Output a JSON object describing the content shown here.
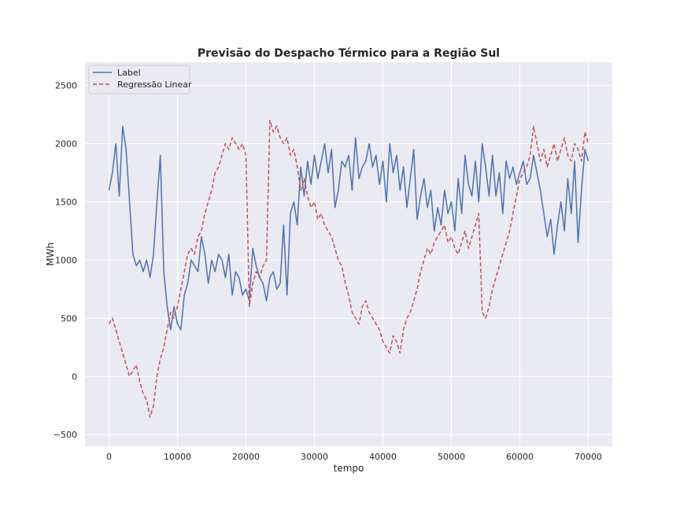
{
  "chart_data": {
    "type": "line",
    "title": "Previsão do Despacho Térmico para a Região Sul",
    "xlabel": "tempo",
    "ylabel": "MWh",
    "xlim": [
      -3500,
      73500
    ],
    "ylim": [
      -600,
      2700
    ],
    "xticks": [
      0,
      10000,
      20000,
      30000,
      40000,
      50000,
      60000,
      70000
    ],
    "xtick_labels": [
      "0",
      "10000",
      "20000",
      "30000",
      "40000",
      "50000",
      "60000",
      "70000"
    ],
    "yticks": [
      -500,
      0,
      500,
      1000,
      1500,
      2000,
      2500
    ],
    "ytick_labels": [
      "−500",
      "0",
      "500",
      "1000",
      "1500",
      "2000",
      "2500"
    ],
    "grid": true,
    "legend_position": "top-left",
    "series": [
      {
        "name": "Label",
        "color": "#4c72b0",
        "style": "solid",
        "x": [
          0,
          500,
          1000,
          1500,
          2000,
          2500,
          3000,
          3500,
          4000,
          4500,
          5000,
          5500,
          6000,
          6500,
          7000,
          7500,
          8000,
          8500,
          9000,
          9500,
          10000,
          10500,
          11000,
          11500,
          12000,
          12500,
          13000,
          13500,
          14000,
          14500,
          15000,
          15500,
          16000,
          16500,
          17000,
          17500,
          18000,
          18500,
          19000,
          19500,
          20000,
          20500,
          21000,
          21500,
          22000,
          22500,
          23000,
          23500,
          24000,
          24500,
          25000,
          25500,
          26000,
          26500,
          27000,
          27500,
          28000,
          28500,
          29000,
          29500,
          30000,
          30500,
          31000,
          31500,
          32000,
          32500,
          33000,
          33500,
          34000,
          34500,
          35000,
          35500,
          36000,
          36500,
          37000,
          37500,
          38000,
          38500,
          39000,
          39500,
          40000,
          40500,
          41000,
          41500,
          42000,
          42500,
          43000,
          43500,
          44000,
          44500,
          45000,
          45500,
          46000,
          46500,
          47000,
          47500,
          48000,
          48500,
          49000,
          49500,
          50000,
          50500,
          51000,
          51500,
          52000,
          52500,
          53000,
          53500,
          54000,
          54500,
          55000,
          55500,
          56000,
          56500,
          57000,
          57500,
          58000,
          58500,
          59000,
          59500,
          60000,
          60500,
          61000,
          61500,
          62000,
          62500,
          63000,
          63500,
          64000,
          64500,
          65000,
          65500,
          66000,
          66500,
          67000,
          67500,
          68000,
          68500,
          69000,
          69500,
          70000
        ],
        "values": [
          1600,
          1750,
          2000,
          1550,
          2150,
          1950,
          1500,
          1050,
          950,
          1000,
          900,
          1000,
          850,
          1050,
          1500,
          1900,
          900,
          600,
          400,
          600,
          450,
          400,
          700,
          800,
          1000,
          950,
          900,
          1200,
          1050,
          800,
          1000,
          900,
          1050,
          1000,
          850,
          1050,
          700,
          900,
          850,
          700,
          750,
          650,
          1100,
          950,
          850,
          800,
          650,
          850,
          900,
          750,
          800,
          1300,
          700,
          1400,
          1500,
          1300,
          1800,
          1550,
          1850,
          1650,
          1900,
          1700,
          1850,
          2000,
          1750,
          1950,
          1450,
          1600,
          1850,
          1800,
          1900,
          1600,
          2050,
          1700,
          1800,
          1850,
          2000,
          1800,
          1900,
          1650,
          1850,
          1500,
          2000,
          1750,
          1900,
          1600,
          1800,
          1450,
          1700,
          1950,
          1350,
          1550,
          1700,
          1450,
          1600,
          1250,
          1450,
          1300,
          1600,
          1400,
          1500,
          1250,
          1700,
          1400,
          1900,
          1650,
          1550,
          1850,
          1500,
          2000,
          1800,
          1550,
          1900,
          1550,
          1750,
          1400,
          1850,
          1700,
          1800,
          1650,
          1750,
          1850,
          1650,
          1700,
          1900,
          1750,
          1600,
          1400,
          1200,
          1350,
          1050,
          1300,
          1500,
          1250,
          1700,
          1400,
          1850,
          1150,
          1600,
          1950,
          1850
        ]
      },
      {
        "name": "Regressão Linear",
        "color": "#c44e52",
        "style": "dashed",
        "x": [
          0,
          500,
          1000,
          1500,
          2000,
          2500,
          3000,
          3500,
          4000,
          4500,
          5000,
          5500,
          6000,
          6500,
          7000,
          7500,
          8000,
          8500,
          9000,
          9500,
          10000,
          10500,
          11000,
          11500,
          12000,
          12500,
          13000,
          13500,
          14000,
          14500,
          15000,
          15500,
          16000,
          16500,
          17000,
          17500,
          18000,
          18500,
          19000,
          19500,
          20000,
          20500,
          21000,
          21500,
          22000,
          22500,
          23000,
          23500,
          24000,
          24500,
          25000,
          25500,
          26000,
          26500,
          27000,
          27500,
          28000,
          28500,
          29000,
          29500,
          30000,
          30500,
          31000,
          31500,
          32000,
          32500,
          33000,
          33500,
          34000,
          34500,
          35000,
          35500,
          36000,
          36500,
          37000,
          37500,
          38000,
          38500,
          39000,
          39500,
          40000,
          40500,
          41000,
          41500,
          42000,
          42500,
          43000,
          43500,
          44000,
          44500,
          45000,
          45500,
          46000,
          46500,
          47000,
          47500,
          48000,
          48500,
          49000,
          49500,
          50000,
          50500,
          51000,
          51500,
          52000,
          52500,
          53000,
          53500,
          54000,
          54500,
          55000,
          55500,
          56000,
          56500,
          57000,
          57500,
          58000,
          58500,
          59000,
          59500,
          60000,
          60500,
          61000,
          61500,
          62000,
          62500,
          63000,
          63500,
          64000,
          64500,
          65000,
          65500,
          66000,
          66500,
          67000,
          67500,
          68000,
          68500,
          69000,
          69500,
          70000
        ],
        "values": [
          450,
          500,
          400,
          300,
          200,
          100,
          0,
          50,
          100,
          -50,
          -150,
          -200,
          -350,
          -250,
          0,
          150,
          250,
          400,
          550,
          500,
          600,
          750,
          900,
          1050,
          1100,
          1050,
          1200,
          1250,
          1400,
          1500,
          1600,
          1750,
          1800,
          1900,
          2000,
          1950,
          2050,
          2000,
          1950,
          2000,
          1900,
          600,
          800,
          900,
          850,
          950,
          1000,
          2200,
          2100,
          2150,
          2050,
          2000,
          2050,
          1900,
          1950,
          1800,
          1600,
          1700,
          1550,
          1450,
          1500,
          1350,
          1400,
          1300,
          1250,
          1200,
          1100,
          1000,
          950,
          800,
          700,
          550,
          500,
          450,
          600,
          650,
          550,
          500,
          450,
          400,
          300,
          250,
          200,
          350,
          300,
          200,
          400,
          500,
          550,
          650,
          750,
          900,
          1000,
          1100,
          1050,
          1150,
          1200,
          1250,
          1300,
          1150,
          1200,
          1100,
          1050,
          1150,
          1250,
          1100,
          1200,
          1300,
          1400,
          550,
          500,
          600,
          750,
          850,
          950,
          1050,
          1150,
          1250,
          1400,
          1550,
          1700,
          1750,
          1800,
          1900,
          2150,
          2000,
          1850,
          1950,
          1800,
          1900,
          2000,
          1850,
          1950,
          2050,
          1900,
          1850,
          2000,
          1950,
          1850,
          2100,
          2000
        ]
      }
    ]
  }
}
